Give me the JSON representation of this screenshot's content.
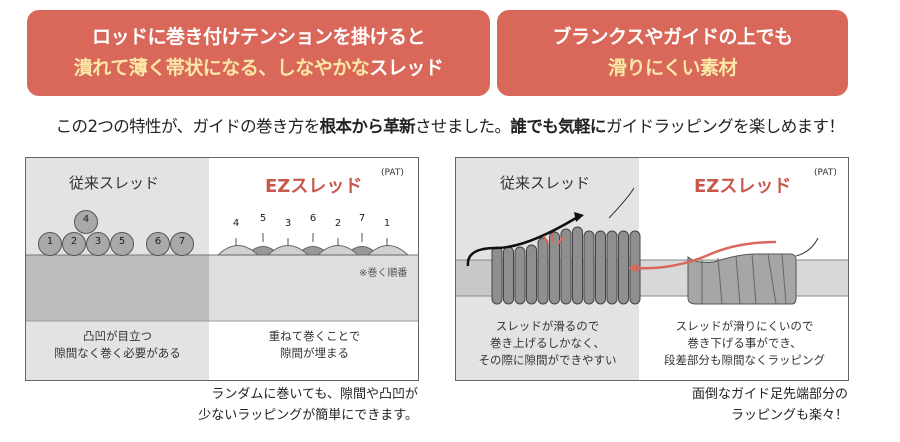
{
  "headline_left": {
    "line1": "ロッドに巻き付けテンションを掛けると",
    "line2_highlight": "潰れて薄く帯状になる、しなやかな",
    "line2_rest": "スレッド"
  },
  "headline_right": {
    "line1": "ブランクスやガイドの上でも",
    "line2_highlight": "滑りにくい素材"
  },
  "tagline": {
    "p1": "この2つの特性が、ガイドの巻き方を",
    "b1": "根本から革新",
    "p2": "させました。",
    "b2": "誰でも気軽に",
    "p3": "ガイドラッピングを楽しめます！"
  },
  "colors": {
    "accent": "#d9685a",
    "highlight": "#fbe7a6",
    "ez_red": "#c9584c"
  },
  "left_panel": {
    "conventional_title": "従来スレッド",
    "ez_title": "EZスレッド",
    "pat": "(PAT)",
    "conventional_numbers": [
      "1",
      "2",
      "3",
      "5",
      "6",
      "7",
      "4"
    ],
    "ez_numbers": [
      "4",
      "5",
      "3",
      "6",
      "2",
      "7",
      "1"
    ],
    "order_note": "※巻く順番",
    "conventional_caption": [
      "凸凹が目立つ",
      "隙間なく巻く必要がある"
    ],
    "ez_caption": [
      "重ねて巻くことで",
      "隙間が埋まる"
    ],
    "note": [
      "ランダムに巻いても、隙間や凸凹が",
      "少ないラッピングが簡単にできます。"
    ]
  },
  "right_panel": {
    "conventional_title": "従来スレッド",
    "ez_title": "EZスレッド",
    "pat": "(PAT)",
    "conventional_caption": [
      "スレッドが滑るので",
      "巻き上げるしかなく、",
      "その際に隙間ができやすい"
    ],
    "ez_caption": [
      "スレッドが滑りにくいので",
      "巻き下げる事ができ、",
      "段差部分も隙間なくラッピング"
    ],
    "note": [
      "面倒なガイド足先端部分の",
      "ラッピングも楽々！"
    ]
  }
}
